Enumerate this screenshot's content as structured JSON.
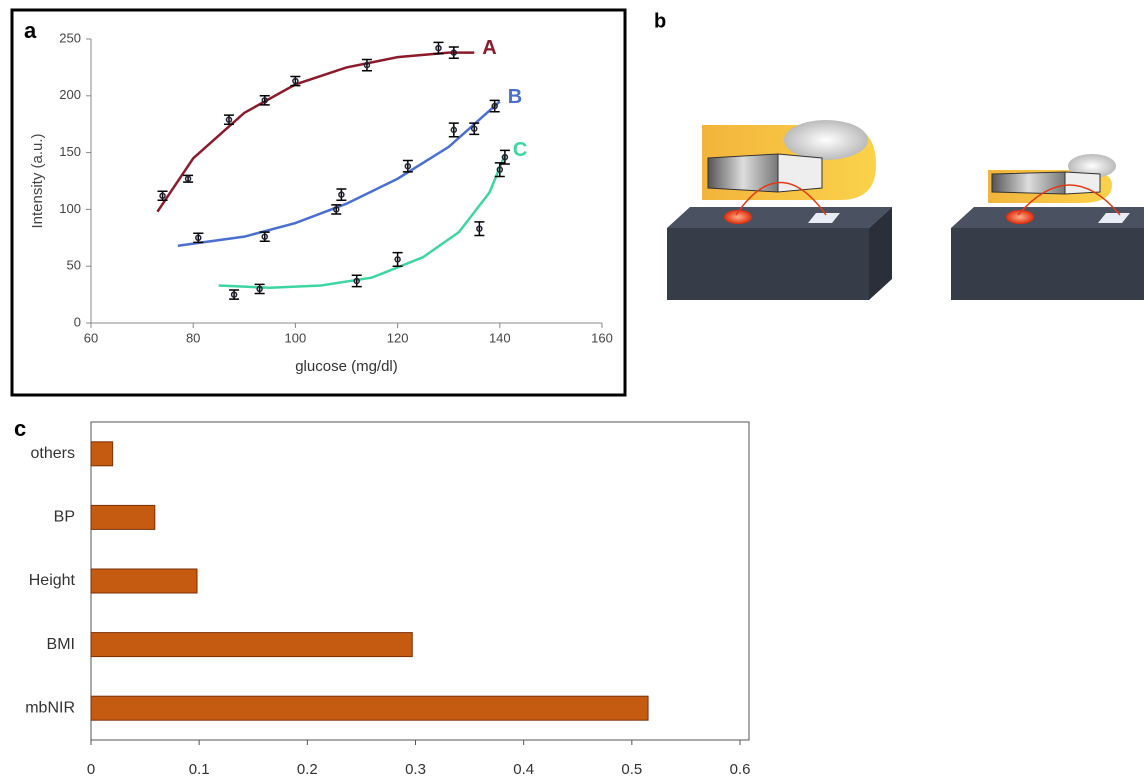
{
  "chart_data": [
    {
      "type": "scatter",
      "label": "a",
      "xlabel": "glucose (mg/dl)",
      "ylabel": "Intensity (a.u.)",
      "xlim": [
        60,
        160
      ],
      "xticks": [
        60,
        80,
        100,
        120,
        140,
        160
      ],
      "ylim": [
        0,
        250
      ],
      "yticks": [
        0,
        50,
        100,
        150,
        200,
        250
      ],
      "series": [
        {
          "name": "A",
          "color": "#8b1a2b",
          "x": [
            74,
            79,
            87,
            94,
            100,
            114,
            128,
            131
          ],
          "values": [
            112,
            127,
            179,
            196,
            213,
            227,
            242,
            238
          ],
          "errors": [
            4,
            3,
            4,
            4,
            4,
            5,
            5,
            5
          ],
          "fit_x": [
            73,
            80,
            90,
            100,
            110,
            120,
            130,
            135
          ],
          "fit_values": [
            98,
            145,
            185,
            210,
            225,
            234,
            238,
            238
          ]
        },
        {
          "name": "B",
          "color": "#4a6fd0",
          "x": [
            81,
            94,
            108,
            109,
            122,
            131,
            135,
            139
          ],
          "values": [
            75,
            76,
            100,
            113,
            138,
            170,
            171,
            191
          ],
          "errors": [
            4,
            4,
            4,
            5,
            5,
            6,
            5,
            5
          ],
          "fit_x": [
            77,
            90,
            100,
            110,
            120,
            130,
            140
          ],
          "fit_values": [
            68,
            76,
            88,
            105,
            127,
            155,
            195
          ]
        },
        {
          "name": "C",
          "color": "#3dd6a0",
          "x": [
            88,
            93,
            112,
            120,
            136,
            140,
            141
          ],
          "values": [
            25,
            30,
            37,
            56,
            83,
            135,
            146
          ],
          "errors": [
            4,
            4,
            5,
            6,
            6,
            6,
            6
          ],
          "fit_x": [
            85,
            95,
            105,
            115,
            125,
            132,
            138,
            141
          ],
          "fit_values": [
            33,
            31,
            33,
            40,
            58,
            80,
            115,
            148
          ]
        }
      ]
    },
    {
      "type": "hbar",
      "label": "c",
      "color": "#c55a11",
      "categories": [
        "others",
        "BP",
        "Height",
        "BMI",
        "mbNIR"
      ],
      "values": [
        0.02,
        0.059,
        0.098,
        0.297,
        0.515
      ],
      "xlim": [
        0,
        0.6
      ],
      "xticks": [
        0,
        0.1,
        0.2,
        0.3,
        0.4,
        0.5,
        0.6
      ]
    }
  ],
  "diagram": {
    "label": "b"
  }
}
